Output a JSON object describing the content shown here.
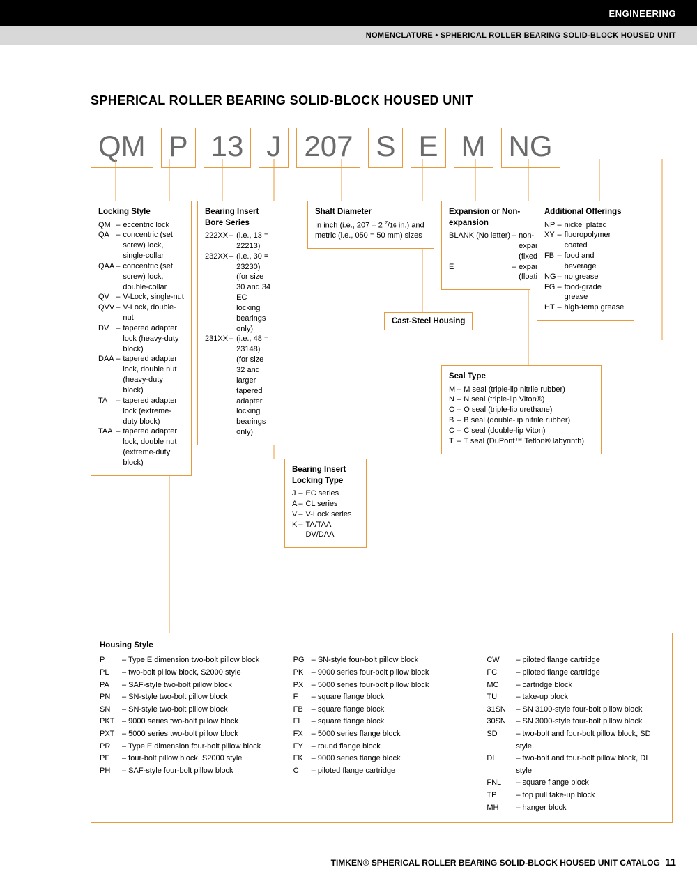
{
  "header": {
    "engineering": "ENGINEERING",
    "breadcrumb": "NOMENCLATURE • SPHERICAL ROLLER BEARING SOLID-BLOCK HOUSED UNIT"
  },
  "title": "SPHERICAL ROLLER BEARING SOLID-BLOCK HOUSED UNIT",
  "code_parts": [
    "QM",
    "P",
    "13",
    "J",
    "207",
    "S",
    "E",
    "M",
    "NG"
  ],
  "locking_style": {
    "title": "Locking Style",
    "rows": [
      [
        "QM",
        "eccentric lock"
      ],
      [
        "QA",
        "concentric (set screw) lock, single-collar"
      ],
      [
        "QAA",
        "concentric (set screw) lock, double-collar"
      ],
      [
        "QV",
        "V-Lock, single-nut"
      ],
      [
        "QVV",
        "V-Lock, double-nut"
      ],
      [
        "DV",
        "tapered adapter lock (heavy-duty block)"
      ],
      [
        "DAA",
        "tapered adapter lock, double nut (heavy-duty block)"
      ],
      [
        "TA",
        "tapered adapter lock (extreme-duty block)"
      ],
      [
        "TAA",
        "tapered adapter lock, double nut (extreme-duty block)"
      ]
    ]
  },
  "bore_series": {
    "title": "Bearing Insert Bore Series",
    "rows": [
      [
        "222XX",
        "(i.e., 13 = 22213)"
      ],
      [
        "232XX",
        "(i.e., 30 = 23230) (for size 30 and 34 EC locking bearings only)"
      ],
      [
        "231XX",
        "(i.e., 48 = 23148) (for size 32 and larger tapered adapter locking bearings only)"
      ]
    ]
  },
  "locking_type": {
    "title": "Bearing Insert Locking Type",
    "rows": [
      [
        "J",
        "EC series"
      ],
      [
        "A",
        "CL series"
      ],
      [
        "V",
        "V-Lock series"
      ],
      [
        "K",
        "TA/TAA DV/DAA"
      ]
    ]
  },
  "shaft_diameter": {
    "title": "Shaft Diameter",
    "text": "In inch (i.e., 207 = 2 7/16 in.) and metric (i.e., 050 = 50 mm) sizes"
  },
  "cast_steel": "Cast-Steel Housing",
  "expansion": {
    "title": "Expansion or Non-expansion",
    "rows": [
      [
        "BLANK (No letter)",
        "non-expansion (fixed)"
      ],
      [
        "E",
        "expansion (floating)"
      ]
    ]
  },
  "seal_type": {
    "title": "Seal Type",
    "rows": [
      [
        "M",
        "M seal (triple-lip nitrile rubber)"
      ],
      [
        "N",
        "N seal (triple-lip Viton®)"
      ],
      [
        "O",
        "O seal (triple-lip urethane)"
      ],
      [
        "B",
        "B seal (double-lip nitrile rubber)"
      ],
      [
        "C",
        "C seal (double-lip Viton)"
      ],
      [
        "T",
        "T seal (DuPont™ Teflon® labyrinth)"
      ]
    ]
  },
  "additional": {
    "title": "Additional Offerings",
    "rows": [
      [
        "NP",
        "nickel plated"
      ],
      [
        "XY",
        "fluoropolymer coated"
      ],
      [
        "FB",
        "food and beverage"
      ],
      [
        "NG",
        "no grease"
      ],
      [
        "FG",
        "food-grade grease"
      ],
      [
        "HT",
        "high-temp grease"
      ]
    ]
  },
  "housing": {
    "title": "Housing Style",
    "col1": [
      [
        "P",
        "Type E dimension two-bolt pillow block"
      ],
      [
        "PL",
        "two-bolt pillow block, S2000 style"
      ],
      [
        "PA",
        "SAF-style two-bolt pillow block"
      ],
      [
        "PN",
        "SN-style two-bolt pillow block"
      ],
      [
        "SN",
        "SN-style two-bolt pillow block"
      ],
      [
        "PKT",
        "9000 series two-bolt pillow block"
      ],
      [
        "PXT",
        "5000 series two-bolt pillow block"
      ],
      [
        "PR",
        "Type E dimension four-bolt pillow block"
      ],
      [
        "PF",
        "four-bolt pillow block, S2000 style"
      ],
      [
        "PH",
        "SAF-style four-bolt pillow block"
      ]
    ],
    "col2": [
      [
        "PG",
        "SN-style four-bolt pillow block"
      ],
      [
        "PK",
        "9000 series four-bolt pillow block"
      ],
      [
        "PX",
        "5000 series four-bolt pillow block"
      ],
      [
        "F",
        "square flange block"
      ],
      [
        "FB",
        "square flange block"
      ],
      [
        "FL",
        "square flange block"
      ],
      [
        "FX",
        "5000 series flange block"
      ],
      [
        "FY",
        "round flange block"
      ],
      [
        "FK",
        "9000 series flange block"
      ],
      [
        "C",
        "piloted flange cartridge"
      ]
    ],
    "col3": [
      [
        "CW",
        "piloted flange cartridge"
      ],
      [
        "FC",
        "piloted flange cartridge"
      ],
      [
        "MC",
        "cartridge block"
      ],
      [
        "TU",
        "take-up block"
      ],
      [
        "31SN",
        "SN 3100-style four-bolt pillow block"
      ],
      [
        "30SN",
        "SN 3000-style four-bolt pillow block"
      ],
      [
        "SD",
        "two-bolt and four-bolt pillow block, SD style"
      ],
      [
        "DI",
        "two-bolt and four-bolt pillow block, DI style"
      ],
      [
        "FNL",
        "square flange block"
      ],
      [
        "TP",
        "top pull take-up block"
      ],
      [
        "MH",
        "hanger block"
      ]
    ]
  },
  "footer": {
    "text": "TIMKEN® SPHERICAL ROLLER BEARING SOLID-BLOCK HOUSED UNIT CATALOG",
    "page": "11"
  },
  "colors": {
    "accent": "#e89b3c",
    "gray_text": "#6b6b6b",
    "gray_bar": "#d8d8d8"
  }
}
